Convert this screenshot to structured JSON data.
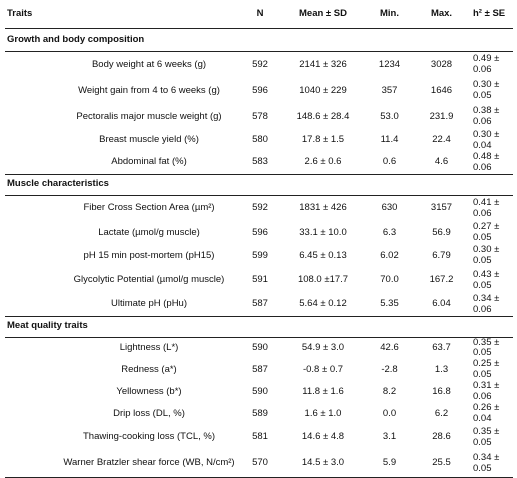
{
  "header": {
    "traits": "Traits",
    "n": "N",
    "mean_sd": "Mean ± SD",
    "min": "Min.",
    "max": "Max.",
    "h2_se": "h² ± SE"
  },
  "sections": [
    {
      "title": "Growth and body composition",
      "rows": [
        {
          "trait": "Body weight at 6 weeks (g)",
          "n": "592",
          "mean_sd": "2141 ± 326",
          "min": "1234",
          "max": "3028",
          "h2_se": "0.49 ± 0.06"
        },
        {
          "trait": "Weight gain from 4 to 6 weeks (g)",
          "n": "596",
          "mean_sd": "1040 ± 229",
          "min": "357",
          "max": "1646",
          "h2_se": "0.30 ± 0.05"
        },
        {
          "trait": "Pectoralis major muscle weight (g)",
          "n": "578",
          "mean_sd": "148.6 ± 28.4",
          "min": "53.0",
          "max": "231.9",
          "h2_se": "0.38 ± 0.06"
        },
        {
          "trait": "Breast muscle yield (%)",
          "n": "580",
          "mean_sd": "17.8 ± 1.5",
          "min": "11.4",
          "max": "22.4",
          "h2_se": "0.30 ± 0.04"
        },
        {
          "trait": "Abdominal fat (%)",
          "n": "583",
          "mean_sd": "2.6 ± 0.6",
          "min": "0.6",
          "max": "4.6",
          "h2_se": "0.48 ± 0.06"
        }
      ]
    },
    {
      "title": "Muscle characteristics",
      "rows": [
        {
          "trait": "Fiber Cross Section Area (µm²)",
          "n": "592",
          "mean_sd": "1831 ± 426",
          "min": "630",
          "max": "3157",
          "h2_se": "0.41 ± 0.06"
        },
        {
          "trait": "Lactate (µmol/g muscle)",
          "n": "596",
          "mean_sd": "33.1 ± 10.0",
          "min": "6.3",
          "max": "56.9",
          "h2_se": "0.27 ± 0.05"
        },
        {
          "trait": "pH 15 min post-mortem (pH15)",
          "n": "599",
          "mean_sd": "6.45 ± 0.13",
          "min": "6.02",
          "max": "6.79",
          "h2_se": "0.30 ± 0.05"
        },
        {
          "trait": "Glycolytic Potential (µmol/g muscle)",
          "n": "591",
          "mean_sd": "108.0 ±17.7",
          "min": "70.0",
          "max": "167.2",
          "h2_se": "0.43 ± 0.05"
        },
        {
          "trait": "Ultimate pH (pHu)",
          "n": "587",
          "mean_sd": "5.64 ± 0.12",
          "min": "5.35",
          "max": "6.04",
          "h2_se": "0.34 ± 0.06"
        }
      ]
    },
    {
      "title": "Meat quality traits",
      "rows": [
        {
          "trait": "Lightness (L*)",
          "n": "590",
          "mean_sd": "54.9 ± 3.0",
          "min": "42.6",
          "max": "63.7",
          "h2_se": "0.35 ± 0.05"
        },
        {
          "trait": "Redness (a*)",
          "n": "587",
          "mean_sd": "-0.8 ± 0.7",
          "min": "-2.8",
          "max": "1.3",
          "h2_se": "0.25 ± 0.05"
        },
        {
          "trait": "Yellowness (b*)",
          "n": "590",
          "mean_sd": "11.8 ± 1.6",
          "min": "8.2",
          "max": "16.8",
          "h2_se": "0.31 ± 0.06"
        },
        {
          "trait": "Drip loss (DL, %)",
          "n": "589",
          "mean_sd": "1.6 ± 1.0",
          "min": "0.0",
          "max": "6.2",
          "h2_se": "0.26 ± 0.04"
        },
        {
          "trait": "Thawing-cooking loss (TCL, %)",
          "n": "581",
          "mean_sd": "14.6 ± 4.8",
          "min": "3.1",
          "max": "28.6",
          "h2_se": "0.35 ± 0.05"
        },
        {
          "trait": "Warner Bratzler shear force (WB, N/cm²)",
          "n": "570",
          "mean_sd": "14.5 ± 3.0",
          "min": "5.9",
          "max": "25.5",
          "h2_se": "0.34 ± 0.05"
        }
      ]
    }
  ]
}
